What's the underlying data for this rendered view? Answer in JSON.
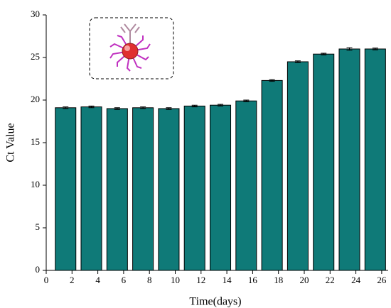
{
  "chart_data": {
    "type": "bar",
    "x": [
      1.5,
      3.5,
      5.5,
      7.5,
      9.5,
      11.5,
      13.5,
      15.5,
      17.5,
      19.5,
      21.5,
      23.5,
      25.5
    ],
    "values": [
      19.1,
      19.2,
      19.0,
      19.1,
      19.0,
      19.3,
      19.4,
      19.9,
      22.3,
      24.5,
      25.4,
      26.0,
      26.0
    ],
    "errors": [
      0.1,
      0.1,
      0.1,
      0.1,
      0.1,
      0.1,
      0.1,
      0.1,
      0.1,
      0.1,
      0.1,
      0.15,
      0.1
    ],
    "color": "#0f7a78",
    "xlabel": "Time(days)",
    "ylabel": "Ct Value",
    "xlim": [
      0,
      26.5
    ],
    "ylim": [
      0,
      30
    ],
    "xticks": [
      0,
      2,
      4,
      6,
      8,
      10,
      12,
      14,
      16,
      18,
      20,
      22,
      24,
      26
    ],
    "yticks": [
      0,
      5,
      10,
      15,
      20,
      25,
      30
    ]
  }
}
